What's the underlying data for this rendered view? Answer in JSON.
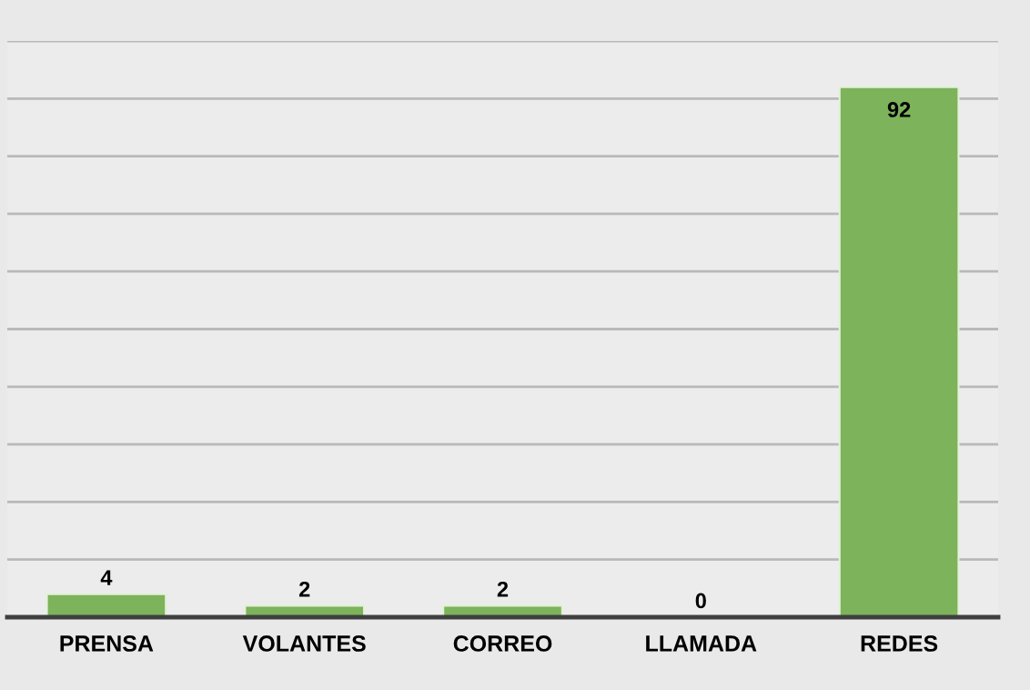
{
  "chart_data": {
    "type": "bar",
    "categories": [
      "PRENSA",
      "VOLANTES",
      "CORREO",
      "LLAMADA",
      "REDES"
    ],
    "values": [
      4,
      2,
      2,
      0,
      92
    ],
    "color": "#7db35b",
    "ylim": [
      0,
      100
    ],
    "yticks": [
      {
        "value": 0,
        "label": null
      },
      {
        "value": 10,
        "label": null
      },
      {
        "value": 20,
        "label": null
      },
      {
        "value": 30,
        "label": null
      },
      {
        "value": 40,
        "label": null
      },
      {
        "value": 50,
        "label": null
      },
      {
        "value": 60,
        "label": null
      },
      {
        "value": 70,
        "label": null
      },
      {
        "value": 80,
        "label": null
      },
      {
        "value": 90,
        "label": null
      },
      {
        "value": 100,
        "label": null
      }
    ],
    "grid": "y",
    "data_labels": true,
    "tick_labels": "x"
  }
}
